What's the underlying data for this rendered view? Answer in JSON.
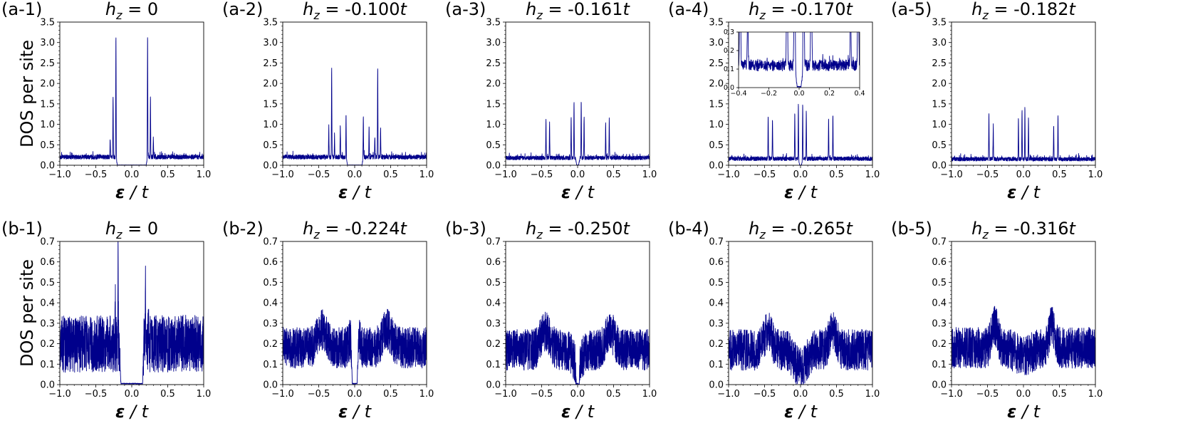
{
  "chart_data": [
    {
      "type": "line",
      "panel": "(a-1)",
      "title": {
        "var": "h",
        "sub": "z",
        "value": " = 0",
        "unit": ""
      },
      "ylabel": "DOS per site",
      "xlabel": {
        "eps": "ε",
        "rest": " / t"
      },
      "xlim": [
        -1.0,
        1.0
      ],
      "ylim": [
        0,
        3.5
      ],
      "xticks": [
        "−1.0",
        "−0.5",
        "0.0",
        "0.5",
        "1.0"
      ],
      "yticks": [
        "0.0",
        "0.5",
        "1.0",
        "1.5",
        "2.0",
        "2.5",
        "3.0",
        "3.5"
      ],
      "line_color": "#00008b",
      "series": [
        {
          "model": {
            "gap": 0.2,
            "base": 0.2,
            "noise": 0.09,
            "seed": 1,
            "peaks": [
              {
                "x": -0.22,
                "h": 2.95
              },
              {
                "x": 0.22,
                "h": 2.95
              },
              {
                "x": -0.26,
                "h": 1.45
              },
              {
                "x": 0.26,
                "h": 1.45
              },
              {
                "x": -0.3,
                "h": 0.45
              },
              {
                "x": 0.3,
                "h": 0.45
              }
            ]
          }
        }
      ]
    },
    {
      "type": "line",
      "panel": "(a-2)",
      "title": {
        "var": "h",
        "sub": "z",
        "value": " = -0.100",
        "unit": "t"
      },
      "ylabel": "",
      "xlabel": {
        "eps": "ε",
        "rest": " / t"
      },
      "xlim": [
        -1.0,
        1.0
      ],
      "ylim": [
        0,
        3.5
      ],
      "xticks": [
        "−1.0",
        "−0.5",
        "0.0",
        "0.5",
        "1.0"
      ],
      "yticks": [
        "0.0",
        "0.5",
        "1.0",
        "1.5",
        "2.0",
        "2.5",
        "3.0",
        "3.5"
      ],
      "line_color": "#00008b",
      "series": [
        {
          "model": {
            "gap": 0.1,
            "base": 0.2,
            "noise": 0.09,
            "seed": 2,
            "peaks": [
              {
                "x": -0.32,
                "h": 2.2
              },
              {
                "x": 0.32,
                "h": 2.2
              },
              {
                "x": -0.12,
                "h": 1.0
              },
              {
                "x": 0.12,
                "h": 1.0
              },
              {
                "x": -0.2,
                "h": 0.75
              },
              {
                "x": 0.2,
                "h": 0.75
              },
              {
                "x": -0.36,
                "h": 0.75
              },
              {
                "x": 0.36,
                "h": 0.75
              },
              {
                "x": -0.28,
                "h": 0.5
              },
              {
                "x": 0.28,
                "h": 0.5
              }
            ]
          }
        }
      ]
    },
    {
      "type": "line",
      "panel": "(a-3)",
      "title": {
        "var": "h",
        "sub": "z",
        "value": " = -0.161",
        "unit": "t"
      },
      "ylabel": "",
      "xlabel": {
        "eps": "ε",
        "rest": " / t"
      },
      "xlim": [
        -1.0,
        1.0
      ],
      "ylim": [
        0,
        3.5
      ],
      "xticks": [
        "−1.0",
        "−0.5",
        "0.0",
        "0.5",
        "1.0"
      ],
      "yticks": [
        "0.0",
        "0.5",
        "1.0",
        "1.5",
        "2.0",
        "2.5",
        "3.0",
        "3.5"
      ],
      "line_color": "#00008b",
      "series": [
        {
          "model": {
            "gap": 0.012,
            "base": 0.18,
            "noise": 0.08,
            "seed": 3,
            "peaks": [
              {
                "x": -0.05,
                "h": 1.4
              },
              {
                "x": 0.05,
                "h": 1.4
              },
              {
                "x": -0.09,
                "h": 1.0
              },
              {
                "x": 0.09,
                "h": 1.0
              },
              {
                "x": -0.44,
                "h": 0.95
              },
              {
                "x": 0.44,
                "h": 0.95
              },
              {
                "x": -0.39,
                "h": 0.85
              },
              {
                "x": 0.39,
                "h": 0.85
              }
            ]
          }
        }
      ]
    },
    {
      "type": "line",
      "panel": "(a-4)",
      "title": {
        "var": "h",
        "sub": "z",
        "value": " = -0.170",
        "unit": "t"
      },
      "ylabel": "",
      "xlabel": {
        "eps": "ε",
        "rest": " / t"
      },
      "xlim": [
        -1.0,
        1.0
      ],
      "ylim": [
        0,
        3.5
      ],
      "xticks": [
        "−1.0",
        "−0.5",
        "0.0",
        "0.5",
        "1.0"
      ],
      "yticks": [
        "0.0",
        "0.5",
        "1.0",
        "1.5",
        "2.0",
        "2.5",
        "3.0",
        "3.5"
      ],
      "line_color": "#00008b",
      "series": [
        {
          "model": {
            "gap": 0.012,
            "base": 0.16,
            "noise": 0.08,
            "seed": 4,
            "peaks": [
              {
                "x": -0.03,
                "h": 1.35
              },
              {
                "x": 0.03,
                "h": 1.35
              },
              {
                "x": -0.08,
                "h": 1.1
              },
              {
                "x": 0.08,
                "h": 1.1
              },
              {
                "x": -0.45,
                "h": 1.05
              },
              {
                "x": 0.45,
                "h": 1.05
              },
              {
                "x": -0.39,
                "h": 0.95
              },
              {
                "x": 0.39,
                "h": 0.95
              }
            ]
          }
        }
      ],
      "inset": {
        "xlim": [
          -0.4,
          0.4
        ],
        "ylim": [
          0,
          0.3
        ],
        "xticks": [
          "−0.4",
          "−0.2",
          "0.0",
          "0.2",
          "0.4"
        ],
        "yticks": [
          "0.0",
          "0.1",
          "0.2",
          "0.3"
        ],
        "model": {
          "gap": 0.012,
          "base": 0.12,
          "noise": 0.05,
          "seed": 9,
          "peaks": [
            {
              "x": -0.03,
              "h": 1.3
            },
            {
              "x": 0.03,
              "h": 1.3
            },
            {
              "x": -0.08,
              "h": 1.0
            },
            {
              "x": 0.08,
              "h": 1.0
            },
            {
              "x": -0.39,
              "h": 0.9
            },
            {
              "x": 0.39,
              "h": 0.9
            },
            {
              "x": -0.34,
              "h": 0.3
            },
            {
              "x": 0.34,
              "h": 0.3
            }
          ]
        }
      }
    },
    {
      "type": "line",
      "panel": "(a-5)",
      "title": {
        "var": "h",
        "sub": "z",
        "value": " = -0.182",
        "unit": "t"
      },
      "ylabel": "",
      "xlabel": {
        "eps": "ε",
        "rest": " / t"
      },
      "xlim": [
        -1.0,
        1.0
      ],
      "ylim": [
        0,
        3.5
      ],
      "xticks": [
        "−1.0",
        "−0.5",
        "0.0",
        "0.5",
        "1.0"
      ],
      "yticks": [
        "0.0",
        "0.5",
        "1.0",
        "1.5",
        "2.0",
        "2.5",
        "3.0",
        "3.5"
      ],
      "line_color": "#00008b",
      "series": [
        {
          "model": {
            "gap": 0,
            "base": 0.15,
            "noise": 0.08,
            "seed": 5,
            "peaks": [
              {
                "x": -0.02,
                "h": 1.2
              },
              {
                "x": 0.02,
                "h": 1.2
              },
              {
                "x": -0.07,
                "h": 1.0
              },
              {
                "x": 0.07,
                "h": 1.0
              },
              {
                "x": -0.48,
                "h": 1.1
              },
              {
                "x": 0.48,
                "h": 1.1
              },
              {
                "x": -0.42,
                "h": 0.8
              },
              {
                "x": 0.42,
                "h": 0.8
              }
            ]
          }
        }
      ]
    },
    {
      "type": "line",
      "panel": "(b-1)",
      "title": {
        "var": "h",
        "sub": "z",
        "value": " = 0",
        "unit": ""
      },
      "ylabel": "DOS per site",
      "xlabel": {
        "eps": "ε",
        "rest": " / t"
      },
      "xlim": [
        -1.0,
        1.0
      ],
      "ylim": [
        0,
        0.7
      ],
      "xticks": [
        "−1.0",
        "−0.5",
        "0.0",
        "0.5",
        "1.0"
      ],
      "yticks": [
        "0.0",
        "0.1",
        "0.2",
        "0.3",
        "0.4",
        "0.5",
        "0.6",
        "0.7"
      ],
      "line_color": "#00008b",
      "series": [
        {
          "model": {
            "gap": 0.15,
            "base": 0.2,
            "noise": 0.14,
            "seed": 6,
            "wide": true,
            "peaks": [
              {
                "x": -0.19,
                "h": 0.42
              },
              {
                "x": 0.19,
                "h": 0.42
              },
              {
                "x": -0.23,
                "h": 0.2
              },
              {
                "x": 0.23,
                "h": 0.2
              }
            ]
          }
        }
      ]
    },
    {
      "type": "line",
      "panel": "(b-2)",
      "title": {
        "var": "h",
        "sub": "z",
        "value": " = -0.224",
        "unit": "t"
      },
      "ylabel": "",
      "xlabel": {
        "eps": "ε",
        "rest": " / t"
      },
      "xlim": [
        -1.0,
        1.0
      ],
      "ylim": [
        0,
        0.7
      ],
      "xticks": [
        "−1.0",
        "−0.5",
        "0.0",
        "0.5",
        "1.0"
      ],
      "yticks": [
        "0.0",
        "0.1",
        "0.2",
        "0.3",
        "0.4",
        "0.5",
        "0.6",
        "0.7"
      ],
      "line_color": "#00008b",
      "series": [
        {
          "model": {
            "gap": 0.035,
            "base": 0.18,
            "noise": 0.1,
            "seed": 7,
            "wide": true,
            "bumps": [
              {
                "x": -0.45,
                "h": 0.09,
                "w": 0.09
              },
              {
                "x": 0.45,
                "h": 0.09,
                "w": 0.09
              },
              {
                "x": -0.06,
                "h": 0.04,
                "w": 0.03
              },
              {
                "x": 0.06,
                "h": 0.04,
                "w": 0.03
              }
            ],
            "peaks": []
          }
        }
      ]
    },
    {
      "type": "line",
      "panel": "(b-3)",
      "title": {
        "var": "h",
        "sub": "z",
        "value": " = -0.250",
        "unit": "t"
      },
      "ylabel": "",
      "xlabel": {
        "eps": "ε",
        "rest": " / t"
      },
      "xlim": [
        -1.0,
        1.0
      ],
      "ylim": [
        0,
        0.7
      ],
      "xticks": [
        "−1.0",
        "−0.5",
        "0.0",
        "0.5",
        "1.0"
      ],
      "yticks": [
        "0.0",
        "0.1",
        "0.2",
        "0.3",
        "0.4",
        "0.5",
        "0.6",
        "0.7"
      ],
      "line_color": "#00008b",
      "series": [
        {
          "model": {
            "gap": 0.01,
            "base": 0.17,
            "noise": 0.1,
            "seed": 8,
            "wide": true,
            "dip": {
              "x": 0,
              "depth": 0.08,
              "w": 0.08
            },
            "bumps": [
              {
                "x": -0.45,
                "h": 0.09,
                "w": 0.09
              },
              {
                "x": 0.45,
                "h": 0.09,
                "w": 0.09
              }
            ],
            "peaks": []
          }
        }
      ]
    },
    {
      "type": "line",
      "panel": "(b-4)",
      "title": {
        "var": "h",
        "sub": "z",
        "value": " = -0.265",
        "unit": "t"
      },
      "ylabel": "",
      "xlabel": {
        "eps": "ε",
        "rest": " / t"
      },
      "xlim": [
        -1.0,
        1.0
      ],
      "ylim": [
        0,
        0.7
      ],
      "xticks": [
        "−1.0",
        "−0.5",
        "0.0",
        "0.5",
        "1.0"
      ],
      "yticks": [
        "0.0",
        "0.1",
        "0.2",
        "0.3",
        "0.4",
        "0.5",
        "0.6",
        "0.7"
      ],
      "line_color": "#00008b",
      "series": [
        {
          "model": {
            "gap": 0,
            "base": 0.17,
            "noise": 0.1,
            "seed": 10,
            "wide": true,
            "dip": {
              "x": 0,
              "depth": 0.09,
              "w": 0.12
            },
            "bumps": [
              {
                "x": -0.45,
                "h": 0.1,
                "w": 0.07
              },
              {
                "x": 0.45,
                "h": 0.1,
                "w": 0.07
              }
            ],
            "peaks": []
          }
        }
      ]
    },
    {
      "type": "line",
      "panel": "(b-5)",
      "title": {
        "var": "h",
        "sub": "z",
        "value": " = -0.316",
        "unit": "t"
      },
      "ylabel": "",
      "xlabel": {
        "eps": "ε",
        "rest": " / t"
      },
      "xlim": [
        -1.0,
        1.0
      ],
      "ylim": [
        0,
        0.7
      ],
      "xticks": [
        "−1.0",
        "−0.5",
        "0.0",
        "0.5",
        "1.0"
      ],
      "yticks": [
        "0.0",
        "0.1",
        "0.2",
        "0.3",
        "0.4",
        "0.5",
        "0.6",
        "0.7"
      ],
      "line_color": "#00008b",
      "series": [
        {
          "model": {
            "gap": 0,
            "base": 0.18,
            "noise": 0.1,
            "seed": 11,
            "wide": true,
            "dip": {
              "x": 0,
              "depth": 0.04,
              "w": 0.15
            },
            "bumps": [
              {
                "x": -0.4,
                "h": 0.11,
                "w": 0.06
              },
              {
                "x": 0.4,
                "h": 0.11,
                "w": 0.06
              }
            ],
            "peaks": []
          }
        }
      ]
    }
  ]
}
